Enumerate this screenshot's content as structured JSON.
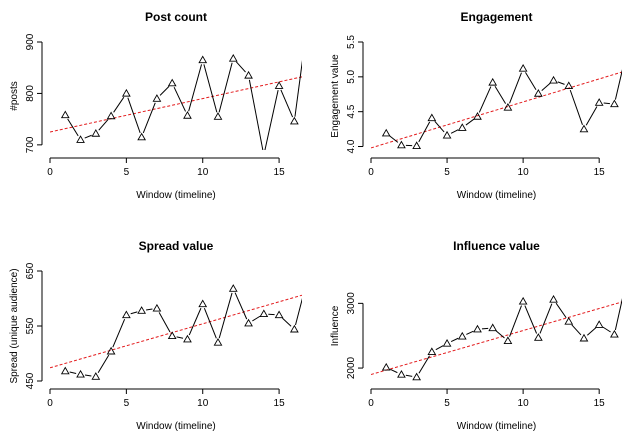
{
  "chart_data": [
    {
      "type": "line",
      "title": "Post count",
      "xlabel": "Window (timeline)",
      "ylabel": "#posts",
      "xlim": [
        0,
        16.5
      ],
      "ylim": [
        690,
        900
      ],
      "xticks": [
        0,
        5,
        10,
        15
      ],
      "yticks": [
        700,
        800,
        900
      ],
      "grid": false,
      "series": [
        {
          "x": [
            1,
            2,
            3,
            4,
            5,
            6,
            7,
            8,
            9,
            10,
            11,
            12,
            13,
            14,
            15,
            16,
            16.6
          ],
          "values": [
            758,
            710,
            722,
            756,
            800,
            715,
            790,
            820,
            757,
            865,
            755,
            868,
            835,
            680,
            815,
            746,
            880
          ],
          "markers": [
            true,
            true,
            true,
            true,
            true,
            true,
            true,
            true,
            true,
            true,
            true,
            true,
            true,
            true,
            true,
            true,
            false
          ],
          "color": "#000000"
        }
      ],
      "trend_line": {
        "intercept": 725,
        "slope": 6.5,
        "color": "#e31a1c",
        "style": "dashed"
      }
    },
    {
      "type": "line",
      "title": "Engagement",
      "xlabel": "Window (timeline)",
      "ylabel": "Engagement value",
      "xlim": [
        0,
        16.5
      ],
      "ylim": [
        3.95,
        5.5
      ],
      "xticks": [
        0,
        5,
        10,
        15
      ],
      "yticks": [
        4.0,
        4.5,
        5.0,
        5.5
      ],
      "ytick_labels": [
        "4.0",
        "4.5",
        "5.0",
        "5.5"
      ],
      "grid": false,
      "series": [
        {
          "x": [
            1,
            2,
            3,
            4,
            5,
            6,
            7,
            8,
            9,
            10,
            11,
            12,
            13,
            14,
            15,
            16,
            16.6
          ],
          "values": [
            4.19,
            4.02,
            4.01,
            4.41,
            4.16,
            4.27,
            4.43,
            4.92,
            4.56,
            5.12,
            4.76,
            4.95,
            4.87,
            4.25,
            4.63,
            4.61,
            5.17
          ],
          "markers": [
            true,
            true,
            true,
            true,
            true,
            true,
            true,
            true,
            true,
            true,
            true,
            true,
            true,
            true,
            true,
            true,
            false
          ],
          "color": "#000000"
        }
      ],
      "trend_line": {
        "intercept": 3.98,
        "slope": 0.066,
        "color": "#e31a1c",
        "style": "dashed"
      }
    },
    {
      "type": "line",
      "title": "Spread value",
      "xlabel": "Window (timeline)",
      "ylabel": "Spread (unique audience)",
      "xlim": [
        0,
        16.5
      ],
      "ylim": [
        450,
        650
      ],
      "xticks": [
        0,
        5,
        10,
        15
      ],
      "yticks": [
        450,
        550,
        650
      ],
      "grid": false,
      "series": [
        {
          "x": [
            1,
            2,
            3,
            4,
            5,
            6,
            7,
            8,
            9,
            10,
            11,
            12,
            13,
            14,
            15,
            16,
            16.6
          ],
          "values": [
            468,
            462,
            458,
            504,
            570,
            578,
            582,
            532,
            526,
            590,
            520,
            618,
            555,
            572,
            570,
            544,
            608
          ],
          "markers": [
            true,
            true,
            true,
            true,
            true,
            true,
            true,
            true,
            true,
            true,
            true,
            true,
            true,
            true,
            true,
            true,
            false
          ],
          "color": "#000000"
        }
      ],
      "trend_line": {
        "intercept": 474,
        "slope": 8.0,
        "color": "#e31a1c",
        "style": "dashed"
      }
    },
    {
      "type": "line",
      "title": "Influence value",
      "xlabel": "Window (timeline)",
      "ylabel": "Influence",
      "xlim": [
        0,
        16.5
      ],
      "ylim": [
        1800,
        3500
      ],
      "xticks": [
        0,
        5,
        10,
        15
      ],
      "yticks": [
        2000,
        3000
      ],
      "grid": false,
      "series": [
        {
          "x": [
            1,
            2,
            3,
            4,
            5,
            6,
            7,
            8,
            9,
            10,
            11,
            12,
            13,
            14,
            15,
            16,
            16.6
          ],
          "values": [
            2010,
            1900,
            1860,
            2250,
            2380,
            2490,
            2600,
            2620,
            2420,
            3030,
            2470,
            3060,
            2720,
            2460,
            2670,
            2520,
            3150
          ],
          "markers": [
            true,
            true,
            true,
            true,
            true,
            true,
            true,
            true,
            true,
            true,
            true,
            true,
            true,
            true,
            true,
            true,
            false
          ],
          "color": "#000000"
        }
      ],
      "trend_line": {
        "intercept": 1900,
        "slope": 68,
        "color": "#e31a1c",
        "style": "dashed"
      }
    }
  ]
}
